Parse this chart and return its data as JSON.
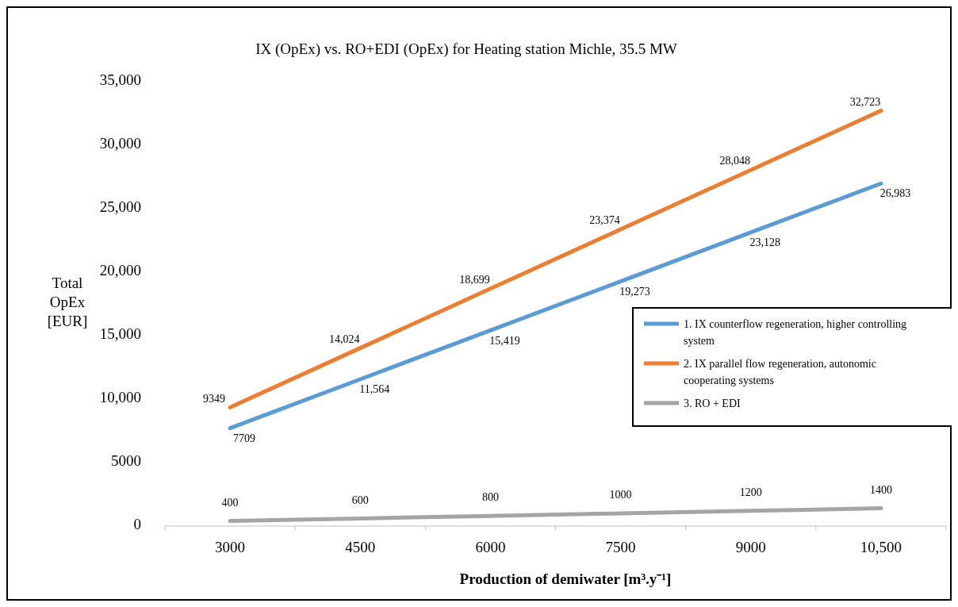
{
  "chart_data": {
    "type": "line",
    "title": "IX (OpEx) vs. RO+EDI (OpEx) for Heating station Michle, 35.5 MW",
    "xlabel": "Production of demiwater [m³.y⁻¹]",
    "ylabel": "Total OpEx [EUR]",
    "categories": [
      "3000",
      "4500",
      "6000",
      "7500",
      "9000",
      "10,500"
    ],
    "series": [
      {
        "name": "1. IX counterflow regeneration, higher controlling system",
        "color": "#5b9bd5",
        "values": [
          7709,
          11564,
          15419,
          19273,
          23128,
          26983
        ],
        "value_labels": [
          "7709",
          "11,564",
          "15,419",
          "19,273",
          "23,128",
          "26,983"
        ]
      },
      {
        "name": "2. IX parallel flow regeneration, autonomic cooperating systems",
        "color": "#ed7d31",
        "values": [
          9349,
          14024,
          18699,
          23374,
          28048,
          32723
        ],
        "value_labels": [
          "9349",
          "14,024",
          "18,699",
          "23,374",
          "28,048",
          "32,723"
        ]
      },
      {
        "name": "3. RO + EDI",
        "color": "#a5a5a5",
        "values": [
          400,
          600,
          800,
          1000,
          1200,
          1400
        ],
        "value_labels": [
          "400",
          "600",
          "800",
          "1000",
          "1200",
          "1400"
        ]
      }
    ],
    "ylim": [
      0,
      35000
    ],
    "yticks": [
      0,
      5000,
      {
        "value": 10000,
        "label": "10,000"
      },
      {
        "value": 15000,
        "label": "15,000"
      },
      {
        "value": 20000,
        "label": "20,000"
      },
      {
        "value": 25000,
        "label": "25,000"
      },
      {
        "value": 30000,
        "label": "30,000"
      },
      {
        "value": 35000,
        "label": "35,000"
      }
    ],
    "grid": false,
    "legend": "right",
    "marker": "none",
    "line_style": "solid"
  }
}
